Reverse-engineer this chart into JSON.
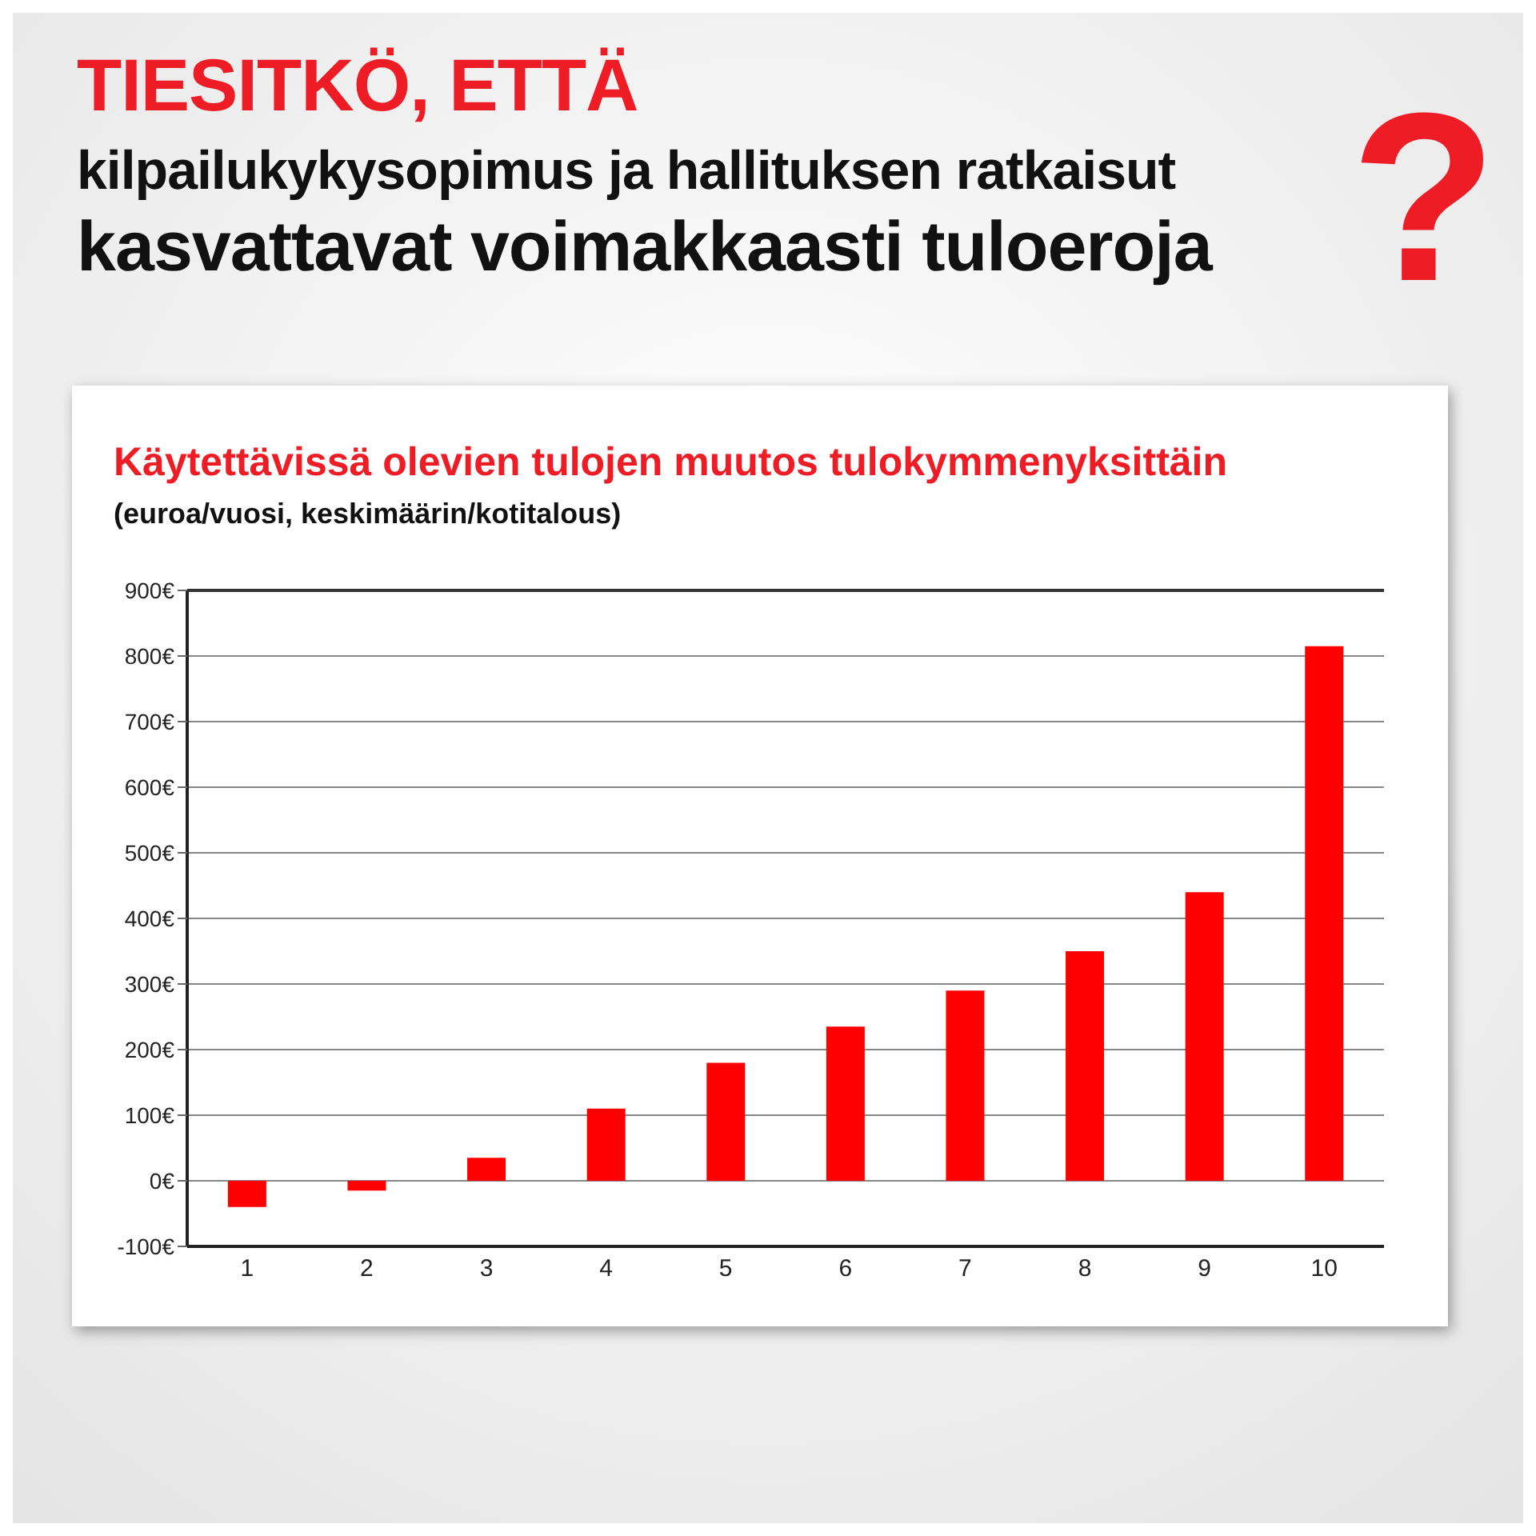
{
  "chart_data": {
    "type": "bar",
    "title": "Käytettävissä olevien tulojen muutos tulokymmenyksittäin",
    "subtitle": "(euroa/vuosi, keskimäärin/kotitalous)",
    "annotations": [
      "TIESITKÖ, ETTÄ",
      "kilpailukykysopimus ja hallituksen ratkaisut",
      "kasvattavat voimakkaasti tuloeroja",
      "?"
    ],
    "categories": [
      "1",
      "2",
      "3",
      "4",
      "5",
      "6",
      "7",
      "8",
      "9",
      "10"
    ],
    "values": [
      -40,
      -15,
      35,
      110,
      180,
      235,
      290,
      350,
      440,
      815
    ],
    "color": "#ff0000",
    "ylim": [
      -100,
      900
    ],
    "yticks": [
      {
        "value": -100,
        "label": "-100€"
      },
      {
        "value": 0,
        "label": "0€"
      },
      {
        "value": 100,
        "label": "100€"
      },
      {
        "value": 200,
        "label": "200€"
      },
      {
        "value": 300,
        "label": "300€"
      },
      {
        "value": 400,
        "label": "400€"
      },
      {
        "value": 500,
        "label": "500€"
      },
      {
        "value": 600,
        "label": "600€"
      },
      {
        "value": 700,
        "label": "700€"
      },
      {
        "value": 800,
        "label": "800€"
      },
      {
        "value": 900,
        "label": "900€"
      }
    ],
    "grid": "y"
  }
}
